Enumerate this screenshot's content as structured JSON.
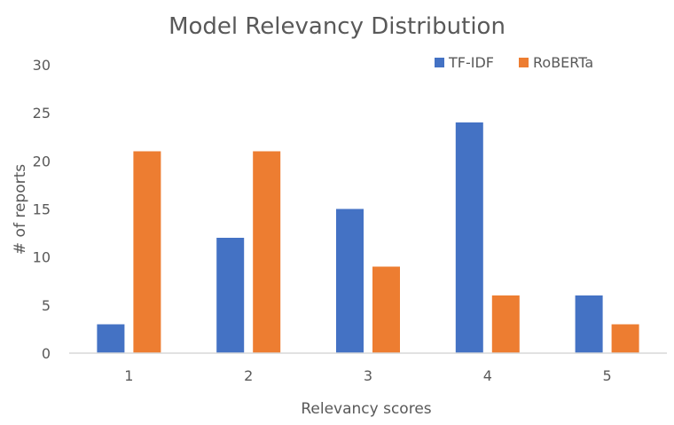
{
  "chart_data": {
    "type": "bar",
    "title": "Model Relevancy Distribution",
    "xlabel": "Relevancy scores",
    "ylabel": "# of reports",
    "categories": [
      "1",
      "2",
      "3",
      "4",
      "5"
    ],
    "series": [
      {
        "name": "TF-IDF",
        "values": [
          3,
          12,
          15,
          24,
          6
        ],
        "color": "#4472C4"
      },
      {
        "name": "RoBERTa",
        "values": [
          21,
          21,
          9,
          6,
          3
        ],
        "color": "#ED7D31"
      }
    ],
    "ylim": [
      0,
      30
    ],
    "yticks": [
      0,
      5,
      10,
      15,
      20,
      25,
      30
    ],
    "grid": false,
    "legend_position": "top-right",
    "axis_color": "#D9D9D9",
    "text_color": "#595959"
  }
}
